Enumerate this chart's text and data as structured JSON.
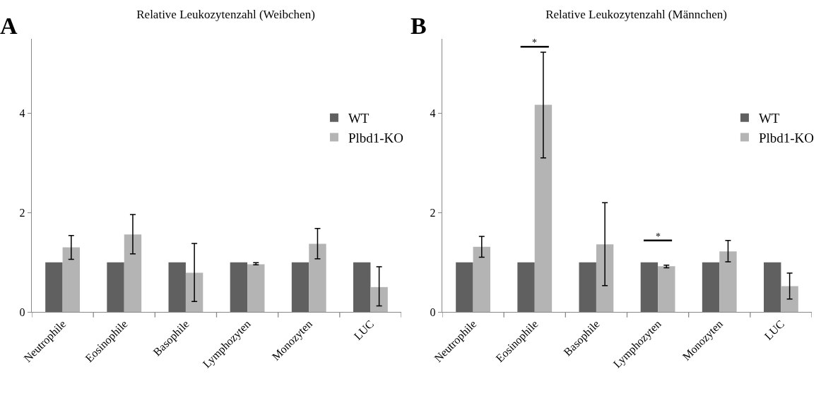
{
  "chart_data": [
    {
      "type": "bar",
      "title": "Relative Leukozytenzahl (Weibchen)",
      "categories": [
        "Neutrophile",
        "Eosinophile",
        "Basophile",
        "Lymphozyten",
        "Monozyten",
        "LUC"
      ],
      "series": [
        {
          "name": "WT",
          "color": "#606060",
          "values": [
            1,
            1,
            1,
            1,
            1,
            1
          ]
        },
        {
          "name": "Plbd1-KO",
          "color": "#b4b4b4",
          "values": [
            1.3,
            1.56,
            0.79,
            0.96,
            1.37,
            0.5
          ],
          "errors": [
            [
              1.06,
              1.54
            ],
            [
              1.17,
              1.96
            ],
            [
              0.21,
              1.38
            ],
            [
              0.95,
              0.99
            ],
            [
              1.07,
              1.68
            ],
            [
              0.12,
              0.91
            ]
          ]
        }
      ],
      "ylim": [
        0,
        5.5
      ],
      "yticks": [
        0,
        2,
        4
      ],
      "grid": false,
      "legend": "top right",
      "annotations": [
        "A"
      ]
    },
    {
      "type": "bar",
      "title": "Relative Leukozytenzahl (Männchen)",
      "categories": [
        "Neutrophile",
        "Eosinophile",
        "Basophile",
        "Lymphozyten",
        "Monozyten",
        "LUC"
      ],
      "series": [
        {
          "name": "WT",
          "color": "#606060",
          "values": [
            1,
            1,
            1,
            1,
            1,
            1
          ]
        },
        {
          "name": "Plbd1-KO",
          "color": "#b4b4b4",
          "values": [
            1.31,
            4.17,
            1.36,
            0.92,
            1.22,
            0.52
          ],
          "errors": [
            [
              1.1,
              1.52
            ],
            [
              3.1,
              5.23
            ],
            [
              0.53,
              2.2
            ],
            [
              0.89,
              0.94
            ],
            [
              1.01,
              1.44
            ],
            [
              0.26,
              0.78
            ]
          ]
        }
      ],
      "ylim": [
        0,
        5.5
      ],
      "yticks": [
        0,
        2,
        4
      ],
      "grid": false,
      "legend": "top right",
      "annotations": [
        "B",
        "*",
        "*"
      ]
    }
  ]
}
